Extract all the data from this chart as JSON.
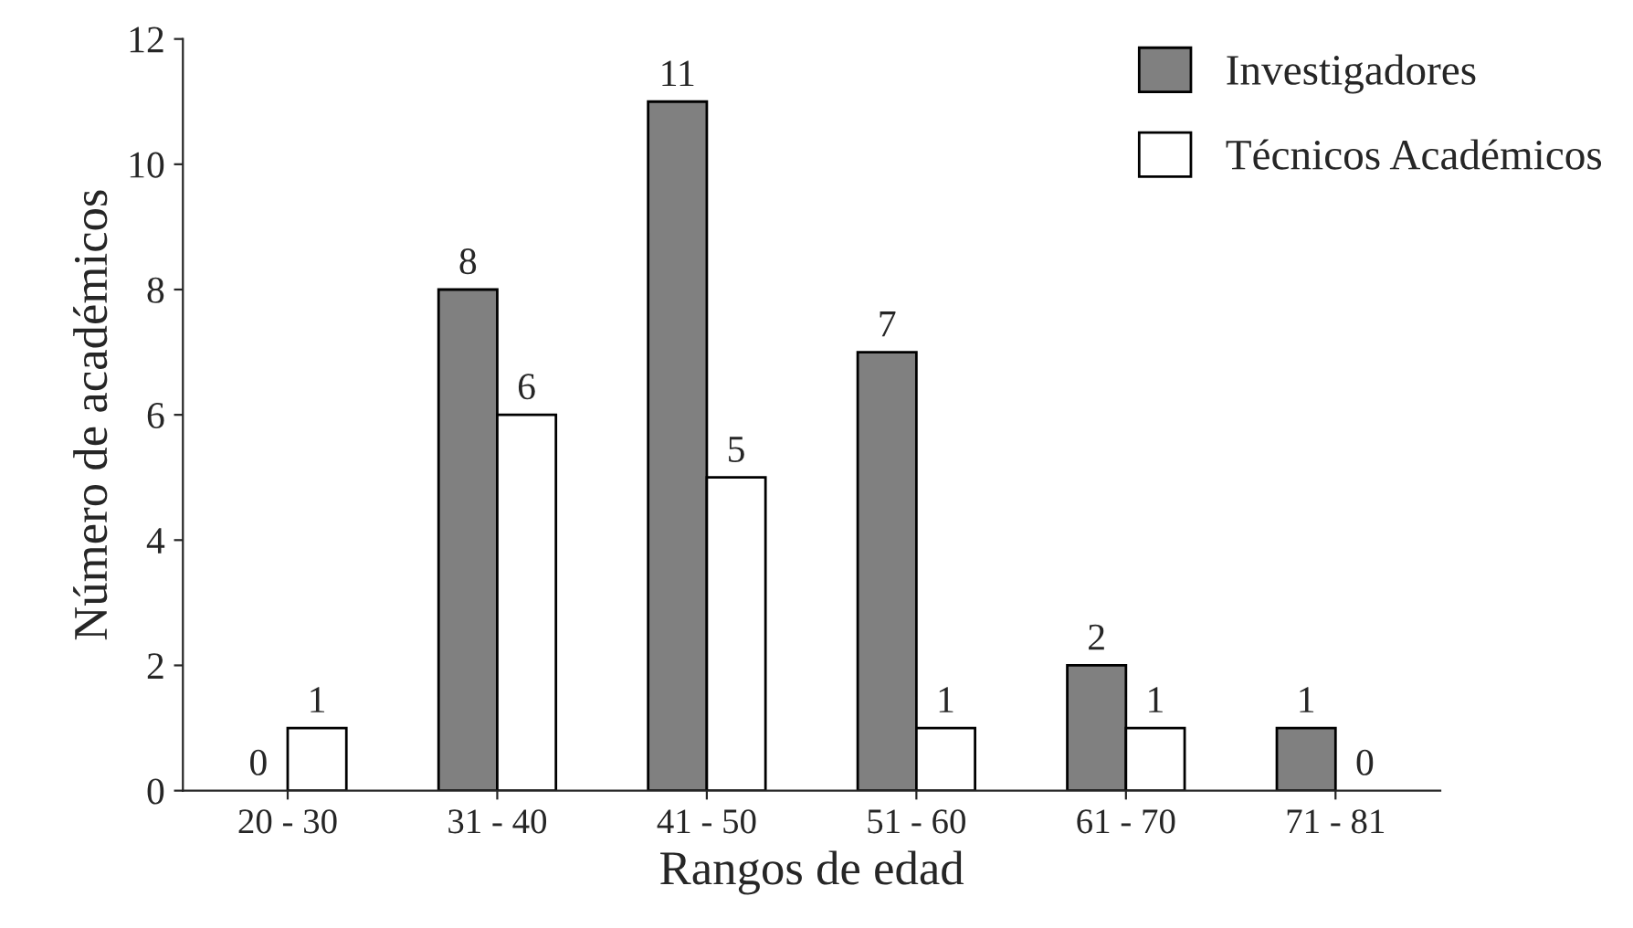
{
  "chart_data": {
    "type": "bar",
    "xlabel": "Rangos de edad",
    "ylabel": "Número de académicos",
    "categories": [
      "20 - 30",
      "31 - 40",
      "41 - 50",
      "51 - 60",
      "61 - 70",
      "71 - 81"
    ],
    "series": [
      {
        "name": "Investigadores",
        "color": "#808080",
        "values": [
          0,
          8,
          11,
          7,
          2,
          1
        ]
      },
      {
        "name": "Técnicos Académicos",
        "color": "#ffffff",
        "values": [
          1,
          6,
          5,
          1,
          1,
          0
        ]
      }
    ],
    "ylim": [
      0,
      12
    ],
    "yticks": [
      0,
      2,
      4,
      6,
      8,
      10,
      12
    ],
    "data_labels": true,
    "legend": "top right",
    "grid": false
  }
}
